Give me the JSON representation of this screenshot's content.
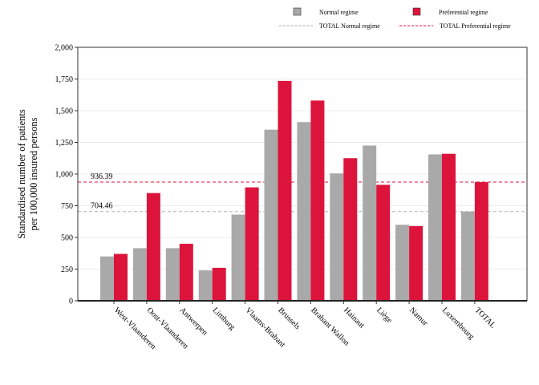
{
  "chart_data": {
    "type": "bar",
    "ylabel_lines": [
      "Standardised number of patients",
      "per 100,000 insured persons"
    ],
    "categories": [
      "West-Vlaanderen",
      "Oost-Vlaanderen",
      "Antwerpen",
      "Limburg",
      "Vlaams-Brabant",
      "Brussels",
      "Brabant Wallon",
      "Hainaut",
      "Liège",
      "Namur",
      "Luxembourg",
      "TOTAL"
    ],
    "series": [
      {
        "name": "Normal regime",
        "color": "#a9a9a9",
        "values": [
          350,
          415,
          415,
          240,
          680,
          1350,
          1410,
          1005,
          1225,
          600,
          1155,
          704.46
        ]
      },
      {
        "name": "Preferential regime",
        "color": "#dc143c",
        "values": [
          370,
          850,
          450,
          260,
          895,
          1735,
          1580,
          1125,
          915,
          590,
          1160,
          936.39
        ]
      }
    ],
    "reference_lines": [
      {
        "name": "TOTAL Normal regime",
        "value": 704.46,
        "label": "704.46",
        "color": "#b0b0b0"
      },
      {
        "name": "TOTAL Preferential regime",
        "value": 936.39,
        "label": "936.39",
        "color": "#dc143c"
      }
    ],
    "ylim": [
      0,
      2000
    ],
    "yticks": [
      0,
      250,
      500,
      750,
      1000,
      1250,
      1500,
      1750,
      2000
    ],
    "ytick_labels": [
      "0",
      "250",
      "500",
      "750",
      "1,000",
      "1,250",
      "1,500",
      "1,750",
      "2,000"
    ],
    "grid": true,
    "legend_position": "top-right"
  }
}
